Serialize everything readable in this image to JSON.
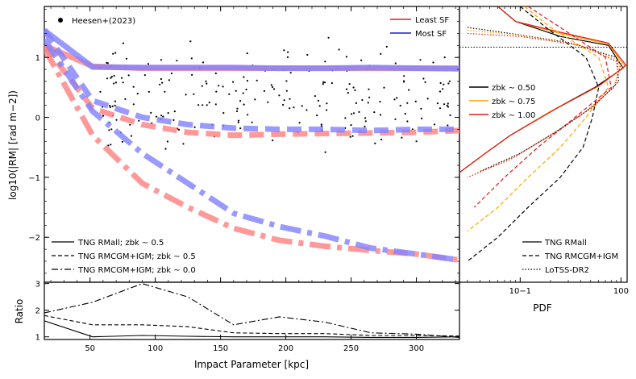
{
  "chart_data": [
    {
      "type": "line",
      "panel": "main",
      "xlim": [
        15,
        333
      ],
      "ylim": [
        -2.75,
        1.85
      ],
      "xticks": [
        50,
        100,
        150,
        200,
        250,
        300
      ],
      "yticks": [
        -2,
        -1,
        0,
        1
      ],
      "ytick_labels": [
        "−2",
        "−1",
        "0",
        "1"
      ],
      "ylabel": "log10(|RM| [rad m−2])",
      "legend_points": {
        "label": "Heesen+(2023)"
      },
      "legend_colors": [
        {
          "label": "Least SF",
          "color": "#e41a1c"
        },
        {
          "label": "Most SF",
          "color": "#1f1fcc"
        }
      ],
      "legend_styles": [
        {
          "label": "TNG RMall; zbk ∼ 0.5",
          "style": "solid"
        },
        {
          "label": "TNG RMCGM+IGM; zbk ∼ 0.5",
          "style": "dashed"
        },
        {
          "label": "TNG RMCGM+IGM; zbk ∼ 0.0",
          "style": "dashdot"
        }
      ],
      "series": [
        {
          "name": "Least SF",
          "style": "solid",
          "color": "#ff7f7f",
          "x": [
            15,
            52,
            90,
            125,
            160,
            195,
            230,
            265,
            300,
            333
          ],
          "y": [
            1.2,
            0.85,
            0.82,
            0.82,
            0.82,
            0.82,
            0.82,
            0.82,
            0.82,
            0.82
          ]
        },
        {
          "name": "Most SF",
          "style": "solid",
          "color": "#7f7fff",
          "x": [
            15,
            52,
            90,
            125,
            160,
            195,
            230,
            265,
            300,
            333
          ],
          "y": [
            1.45,
            0.84,
            0.83,
            0.83,
            0.83,
            0.82,
            0.82,
            0.83,
            0.82,
            0.81
          ]
        },
        {
          "name": "Least SF",
          "style": "dashed",
          "color": "#ff7f7f",
          "x": [
            15,
            52,
            90,
            125,
            160,
            195,
            230,
            265,
            300,
            333
          ],
          "y": [
            1.2,
            0.15,
            -0.12,
            -0.25,
            -0.3,
            -0.28,
            -0.27,
            -0.26,
            -0.25,
            -0.22
          ]
        },
        {
          "name": "Most SF",
          "style": "dashed",
          "color": "#7f7fff",
          "x": [
            15,
            52,
            90,
            125,
            160,
            195,
            230,
            265,
            300,
            333
          ],
          "y": [
            1.45,
            0.28,
            0.0,
            -0.12,
            -0.18,
            -0.2,
            -0.2,
            -0.22,
            -0.2,
            -0.2
          ]
        },
        {
          "name": "Least SF",
          "style": "dashdot",
          "color": "#ff7f7f",
          "x": [
            15,
            52,
            90,
            125,
            160,
            195,
            230,
            265,
            300,
            333
          ],
          "y": [
            1.15,
            -0.3,
            -1.1,
            -1.5,
            -1.85,
            -2.05,
            -2.15,
            -2.22,
            -2.28,
            -2.38
          ]
        },
        {
          "name": "Most SF",
          "style": "dashdot",
          "color": "#7f7fff",
          "x": [
            15,
            52,
            90,
            125,
            160,
            195,
            230,
            265,
            300,
            333
          ],
          "y": [
            1.3,
            0.1,
            -0.6,
            -1.1,
            -1.6,
            -1.82,
            -1.98,
            -2.18,
            -2.28,
            -2.38
          ]
        }
      ]
    },
    {
      "type": "line",
      "panel": "ratio",
      "xlim": [
        15,
        333
      ],
      "ylim": [
        0.9,
        3.05
      ],
      "xticks": [
        50,
        100,
        150,
        200,
        250,
        300
      ],
      "yticks": [
        1,
        2,
        3
      ],
      "xlabel": "Impact Parameter [kpc]",
      "ylabel": "Ratio",
      "series": [
        {
          "style": "solid",
          "x": [
            15,
            52,
            90,
            125,
            160,
            195,
            230,
            265,
            300,
            333
          ],
          "y": [
            1.6,
            1.0,
            1.05,
            1.02,
            1.0,
            1.0,
            1.0,
            0.98,
            0.98,
            1.0
          ]
        },
        {
          "style": "dashed",
          "x": [
            15,
            52,
            90,
            125,
            160,
            195,
            230,
            265,
            300,
            333
          ],
          "y": [
            1.8,
            1.45,
            1.45,
            1.38,
            1.15,
            1.12,
            1.12,
            1.05,
            1.05,
            1.03
          ]
        },
        {
          "style": "dashdot",
          "x": [
            15,
            52,
            90,
            125,
            160,
            195,
            230,
            265,
            300,
            333
          ],
          "y": [
            1.9,
            2.3,
            3.0,
            2.5,
            1.45,
            1.75,
            1.55,
            1.15,
            1.1,
            0.98
          ]
        }
      ]
    },
    {
      "type": "line",
      "panel": "pdf",
      "xscale": "log",
      "xlim": [
        0.025,
        1.15
      ],
      "xticks": [
        0.1,
        1
      ],
      "xtick_labels": [
        "10−1",
        "100"
      ],
      "xlabel": "PDF",
      "legend_colors": [
        {
          "label": "zbk ∼ 0.50",
          "color": "#000000"
        },
        {
          "label": "zbk ∼ 0.75",
          "color": "#ffa500"
        },
        {
          "label": "zbk ∼ 1.00",
          "color": "#e41a1c"
        }
      ],
      "legend_styles": [
        {
          "label": "TNG RMall",
          "style": "solid"
        },
        {
          "label": "TNG RMCGM+IGM",
          "style": "dashed"
        },
        {
          "label": "LoTSS-DR2",
          "style": "dotted"
        }
      ],
      "series": [
        {
          "name": "zbk ∼ 0.50",
          "style": "solid",
          "color": "#000000",
          "x": [
            0.06,
            0.09,
            0.25,
            0.75,
            1.05,
            0.55,
            0.2,
            0.08,
            0.045,
            0.025
          ],
          "y": [
            1.85,
            1.6,
            1.35,
            1.2,
            0.82,
            0.5,
            0.1,
            -0.3,
            -0.6,
            -0.92
          ]
        },
        {
          "name": "zbk ∼ 0.75",
          "style": "solid",
          "color": "#ffa500",
          "x": [
            0.06,
            0.09,
            0.25,
            0.75,
            1.1,
            0.6,
            0.21,
            0.08,
            0.045,
            0.025
          ],
          "y": [
            1.85,
            1.6,
            1.4,
            1.22,
            0.85,
            0.52,
            0.12,
            -0.3,
            -0.6,
            -0.92
          ]
        },
        {
          "name": "zbk ∼ 1.00",
          "style": "solid",
          "color": "#e41a1c",
          "x": [
            0.06,
            0.09,
            0.25,
            0.75,
            1.12,
            0.62,
            0.22,
            0.08,
            0.045,
            0.025
          ],
          "y": [
            1.85,
            1.6,
            1.42,
            1.24,
            0.87,
            0.54,
            0.13,
            -0.3,
            -0.6,
            -0.92
          ]
        },
        {
          "name": "zbk ∼ 0.50",
          "style": "dashed",
          "color": "#000000",
          "x": [
            0.1,
            0.18,
            0.45,
            0.6,
            0.52,
            0.42,
            0.25,
            0.12,
            0.06,
            0.03
          ],
          "y": [
            1.85,
            1.5,
            1.0,
            0.5,
            0.0,
            -0.5,
            -1.0,
            -1.5,
            -2.0,
            -2.4
          ]
        },
        {
          "name": "zbk ∼ 0.75",
          "style": "dashed",
          "color": "#ffa500",
          "x": [
            0.11,
            0.2,
            0.6,
            0.75,
            0.45,
            0.25,
            0.12,
            0.06,
            0.03
          ],
          "y": [
            1.85,
            1.5,
            1.0,
            0.5,
            0.0,
            -0.5,
            -1.0,
            -1.5,
            -1.9
          ]
        },
        {
          "name": "zbk ∼ 1.00",
          "style": "dashed",
          "color": "#e41a1c",
          "x": [
            0.12,
            0.25,
            0.7,
            0.8,
            0.35,
            0.15,
            0.07,
            0.035
          ],
          "y": [
            1.85,
            1.5,
            1.0,
            0.5,
            0.0,
            -0.5,
            -1.0,
            -1.5
          ]
        },
        {
          "name": "LoTSS-DR2",
          "style": "dotted",
          "color": "#000000",
          "x": [
            0.03,
            0.08,
            0.3,
            0.9,
            0.95,
            0.55,
            0.25,
            0.1,
            0.04
          ],
          "y": [
            1.5,
            1.4,
            1.25,
            1.0,
            0.6,
            0.2,
            -0.2,
            -0.6,
            -0.9
          ]
        },
        {
          "name": "LoTSS-DR2",
          "style": "dotted",
          "color": "#ffa500",
          "x": [
            0.03,
            0.09,
            0.35,
            0.95,
            0.9,
            0.5,
            0.22,
            0.09,
            0.035
          ],
          "y": [
            1.45,
            1.38,
            1.22,
            0.95,
            0.55,
            0.15,
            -0.25,
            -0.65,
            -0.95
          ]
        },
        {
          "name": "LoTSS-DR2",
          "style": "dotted",
          "color": "#e41a1c",
          "x": [
            0.03,
            0.1,
            0.4,
            1.0,
            0.85,
            0.45,
            0.2,
            0.08,
            0.03
          ],
          "y": [
            1.4,
            1.35,
            1.2,
            0.9,
            0.5,
            0.1,
            -0.3,
            -0.7,
            -1.0
          ]
        }
      ],
      "reference_line": {
        "y": 1.17,
        "style": "dotted",
        "color": "#000000"
      }
    }
  ]
}
